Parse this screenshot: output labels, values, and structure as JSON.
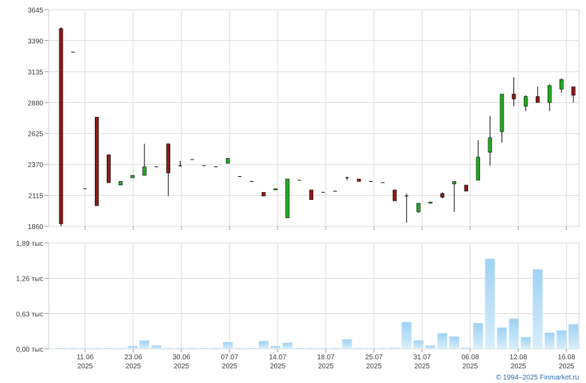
{
  "chart_data": [
    {
      "type": "candlestick",
      "ylim": [
        1860,
        3645
      ],
      "y_ticks": [
        1860,
        2115,
        2370,
        2625,
        2880,
        3135,
        3390,
        3645
      ],
      "y_tick_labels": [
        "1860",
        "2115",
        "2370",
        "2625",
        "2880",
        "3135",
        "3390",
        "3645"
      ],
      "grid": true,
      "colors": {
        "up": "#22aa22",
        "down": "#8b1a1a",
        "doji": "#000000"
      },
      "candles": [
        {
          "d": 0,
          "o": 3490,
          "h": 3500,
          "l": 1860,
          "c": 1880
        },
        {
          "d": 1,
          "o": 3295,
          "h": 3295,
          "l": 3295,
          "c": 3295
        },
        {
          "d": 2,
          "o": 2170,
          "h": 2170,
          "l": 2170,
          "c": 2170
        },
        {
          "d": 3,
          "o": 2760,
          "h": 2760,
          "l": 2030,
          "c": 2030
        },
        {
          "d": 4,
          "o": 2450,
          "h": 2450,
          "l": 2220,
          "c": 2220
        },
        {
          "d": 5,
          "o": 2200,
          "h": 2230,
          "l": 2200,
          "c": 2230
        },
        {
          "d": 6,
          "o": 2260,
          "h": 2280,
          "l": 2260,
          "c": 2280
        },
        {
          "d": 7,
          "o": 2280,
          "h": 2540,
          "l": 2280,
          "c": 2350
        },
        {
          "d": 8,
          "o": 2350,
          "h": 2350,
          "l": 2350,
          "c": 2350
        },
        {
          "d": 9,
          "o": 2540,
          "h": 2540,
          "l": 2110,
          "c": 2300
        },
        {
          "d": 10,
          "o": 2360,
          "h": 2400,
          "l": 2350,
          "c": 2360
        },
        {
          "d": 11,
          "o": 2410,
          "h": 2410,
          "l": 2410,
          "c": 2410
        },
        {
          "d": 12,
          "o": 2360,
          "h": 2360,
          "l": 2360,
          "c": 2360
        },
        {
          "d": 13,
          "o": 2350,
          "h": 2350,
          "l": 2350,
          "c": 2350
        },
        {
          "d": 14,
          "o": 2380,
          "h": 2420,
          "l": 2380,
          "c": 2420
        },
        {
          "d": 15,
          "o": 2270,
          "h": 2270,
          "l": 2270,
          "c": 2270
        },
        {
          "d": 16,
          "o": 2230,
          "h": 2230,
          "l": 2230,
          "c": 2230
        },
        {
          "d": 17,
          "o": 2140,
          "h": 2140,
          "l": 2110,
          "c": 2110
        },
        {
          "d": 18,
          "o": 2160,
          "h": 2170,
          "l": 2160,
          "c": 2170
        },
        {
          "d": 19,
          "o": 1930,
          "h": 2250,
          "l": 1930,
          "c": 2250
        },
        {
          "d": 20,
          "o": 2240,
          "h": 2240,
          "l": 2240,
          "c": 2240
        },
        {
          "d": 21,
          "o": 2160,
          "h": 2160,
          "l": 2080,
          "c": 2080
        },
        {
          "d": 22,
          "o": 2140,
          "h": 2140,
          "l": 2140,
          "c": 2140
        },
        {
          "d": 23,
          "o": 2150,
          "h": 2150,
          "l": 2150,
          "c": 2150
        },
        {
          "d": 24,
          "o": 2260,
          "h": 2270,
          "l": 2240,
          "c": 2260
        },
        {
          "d": 25,
          "o": 2250,
          "h": 2250,
          "l": 2230,
          "c": 2230
        },
        {
          "d": 26,
          "o": 2230,
          "h": 2230,
          "l": 2230,
          "c": 2230
        },
        {
          "d": 27,
          "o": 2220,
          "h": 2220,
          "l": 2220,
          "c": 2220
        },
        {
          "d": 28,
          "o": 2160,
          "h": 2160,
          "l": 2070,
          "c": 2070
        },
        {
          "d": 29,
          "o": 2110,
          "h": 2130,
          "l": 1890,
          "c": 2110
        },
        {
          "d": 30,
          "o": 1980,
          "h": 2050,
          "l": 1970,
          "c": 2050
        },
        {
          "d": 31,
          "o": 2050,
          "h": 2060,
          "l": 2050,
          "c": 2060
        },
        {
          "d": 32,
          "o": 2130,
          "h": 2140,
          "l": 2090,
          "c": 2100
        },
        {
          "d": 33,
          "o": 2210,
          "h": 2230,
          "l": 1980,
          "c": 2230
        },
        {
          "d": 34,
          "o": 2200,
          "h": 2200,
          "l": 2150,
          "c": 2150
        },
        {
          "d": 35,
          "o": 2240,
          "h": 2570,
          "l": 2240,
          "c": 2430
        },
        {
          "d": 36,
          "o": 2470,
          "h": 2770,
          "l": 2360,
          "c": 2590
        },
        {
          "d": 37,
          "o": 2640,
          "h": 2950,
          "l": 2550,
          "c": 2950
        },
        {
          "d": 38,
          "o": 2950,
          "h": 3090,
          "l": 2850,
          "c": 2910
        },
        {
          "d": 39,
          "o": 2850,
          "h": 2940,
          "l": 2810,
          "c": 2930
        },
        {
          "d": 40,
          "o": 2930,
          "h": 3010,
          "l": 2880,
          "c": 2880
        },
        {
          "d": 41,
          "o": 2880,
          "h": 3030,
          "l": 2810,
          "c": 3020
        },
        {
          "d": 42,
          "o": 2990,
          "h": 3080,
          "l": 2960,
          "c": 3070
        },
        {
          "d": 43,
          "o": 3010,
          "h": 3010,
          "l": 2880,
          "c": 2940
        }
      ]
    },
    {
      "type": "bar",
      "ylim": [
        0,
        1.89
      ],
      "y_ticks": [
        0,
        0.63,
        1.26,
        1.89
      ],
      "y_tick_labels": [
        "0,00 тыс",
        "0,63 тыс",
        "1,26 тыс",
        "1,89 тыс"
      ],
      "grid": true,
      "bar_color_top": "#9fd2f4",
      "bar_color_bottom": "#d8eefb",
      "values": [
        0.01,
        0.01,
        0.01,
        0.01,
        0.01,
        0.01,
        0.05,
        0.15,
        0.06,
        0.01,
        0.01,
        0.01,
        0.01,
        0.01,
        0.12,
        0.01,
        0.01,
        0.14,
        0.05,
        0.11,
        0.01,
        0.01,
        0.01,
        0.01,
        0.17,
        0.01,
        0.01,
        0.01,
        0.02,
        0.48,
        0.15,
        0.06,
        0.28,
        0.22,
        0.02,
        0.46,
        1.61,
        0.38,
        0.54,
        0.21,
        1.42,
        0.29,
        0.33,
        0.44
      ]
    }
  ],
  "x_axis": {
    "ticks": [
      {
        "d": 2,
        "date": "11.06",
        "year": "2025"
      },
      {
        "d": 6,
        "date": "23.06",
        "year": "2025"
      },
      {
        "d": 10,
        "date": "30.06",
        "year": "2025"
      },
      {
        "d": 14,
        "date": "07.07",
        "year": "2025"
      },
      {
        "d": 18,
        "date": "14.07",
        "year": "2025"
      },
      {
        "d": 22,
        "date": "18.07",
        "year": "2025"
      },
      {
        "d": 26,
        "date": "25.07",
        "year": "2025"
      },
      {
        "d": 30,
        "date": "31.07",
        "year": "2025"
      },
      {
        "d": 34,
        "date": "06.08",
        "year": "2025"
      },
      {
        "d": 38,
        "date": "12.08",
        "year": "2025"
      },
      {
        "d": 42,
        "date": "16.08",
        "year": "2025"
      }
    ]
  },
  "footer": {
    "credit": "© 1994–2025 Finmarket.ru"
  }
}
